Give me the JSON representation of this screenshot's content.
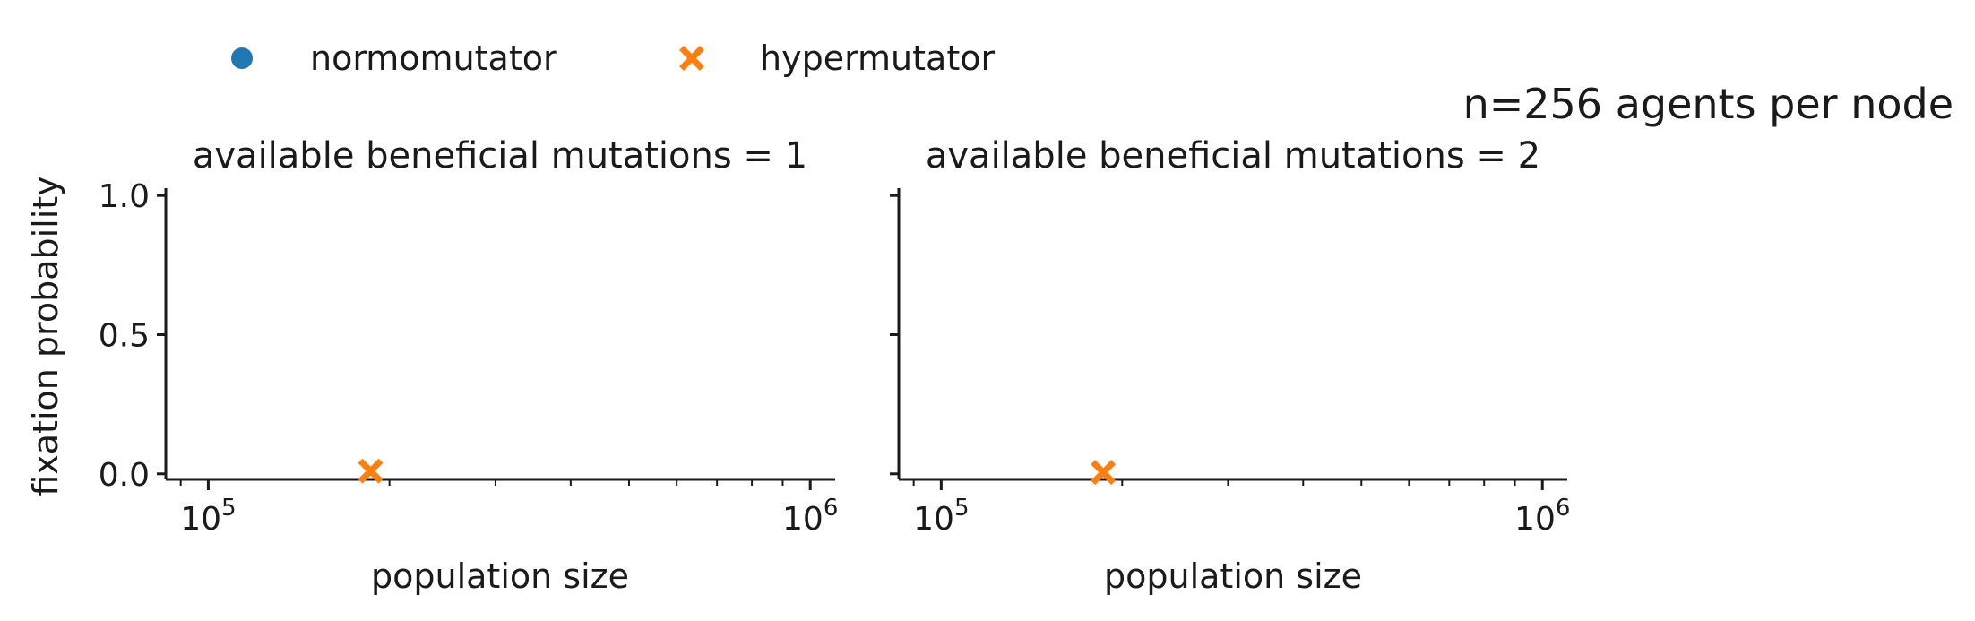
{
  "chart_data": {
    "type": "scatter",
    "suptitle": "n=256 agents per node",
    "legend": {
      "placement": "top-left",
      "entries": [
        {
          "name": "normomutator",
          "color": "#1f77b4",
          "marker": "circle"
        },
        {
          "name": "hypermutator",
          "color": "#ff7f0e",
          "marker": "x"
        }
      ]
    },
    "ylabel": "fixation probability",
    "xscale": "log",
    "xlim": [
      85000,
      1100000
    ],
    "ylim": [
      -0.02,
      1.02
    ],
    "yticks": [
      {
        "value": 0.0,
        "label": "0.0"
      },
      {
        "value": 0.5,
        "label": "0.5"
      },
      {
        "value": 1.0,
        "label": "1.0"
      }
    ],
    "xticks": [
      {
        "value": 100000,
        "base": "10",
        "exp": "5"
      },
      {
        "value": 1000000,
        "base": "10",
        "exp": "6"
      }
    ],
    "grid": false,
    "panels": [
      {
        "title": "available beneficial mutations = 1",
        "xlabel": "population size",
        "series": [
          {
            "name": "normomutator",
            "points": []
          },
          {
            "name": "hypermutator",
            "points": [
              {
                "x": 186000,
                "y": 0.01
              }
            ]
          }
        ]
      },
      {
        "title": "available beneficial mutations = 2",
        "xlabel": "population size",
        "series": [
          {
            "name": "normomutator",
            "points": []
          },
          {
            "name": "hypermutator",
            "points": [
              {
                "x": 186000,
                "y": 0.005
              }
            ]
          }
        ]
      }
    ]
  }
}
